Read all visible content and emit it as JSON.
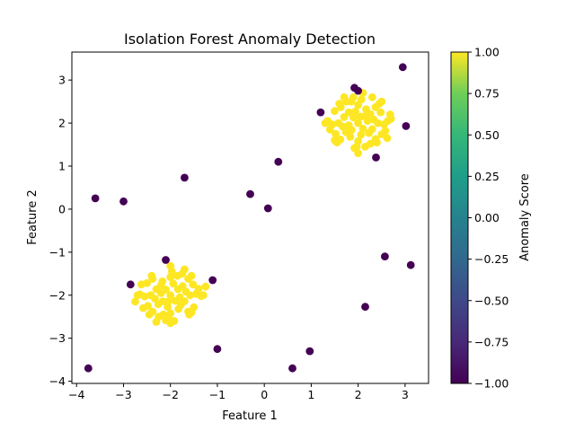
{
  "chart_data": {
    "type": "scatter",
    "title": "Isolation Forest Anomaly Detection",
    "xlabel": "Feature 1",
    "ylabel": "Feature 2",
    "xlim": [
      -4.1,
      3.5
    ],
    "ylim": [
      -4.05,
      3.65
    ],
    "xticks": [
      -4,
      -3,
      -2,
      -1,
      0,
      1,
      2,
      3
    ],
    "yticks": [
      -4,
      -3,
      -2,
      -1,
      0,
      1,
      2,
      3
    ],
    "grid": false,
    "colorbar": {
      "label": "Anomaly Score",
      "colormap": "viridis",
      "range": [
        -1.0,
        1.0
      ],
      "ticks": [
        "-1.00",
        "-0.75",
        "-0.50",
        "-0.25",
        "0.00",
        "0.25",
        "0.50",
        "0.75",
        "1.00"
      ],
      "ticks_values": [
        -1.0,
        -0.75,
        -0.5,
        -0.25,
        0.0,
        0.25,
        0.5,
        0.75,
        1.0
      ]
    },
    "colors": {
      "inlier": "#fde725",
      "outlier": "#440154"
    },
    "series": [
      {
        "score": 1,
        "points": [
          [
            2.0,
            2.0
          ],
          [
            1.62,
            1.62
          ],
          [
            1.63,
            2.37
          ],
          [
            2.37,
            1.63
          ],
          [
            2.37,
            2.37
          ],
          [
            1.58,
            2.0
          ],
          [
            2.42,
            2.0
          ],
          [
            2.0,
            1.58
          ],
          [
            2.0,
            2.42
          ],
          [
            1.45,
            1.97
          ],
          [
            2.55,
            1.97
          ],
          [
            1.97,
            1.45
          ],
          [
            2.07,
            2.55
          ],
          [
            1.35,
            2.05
          ],
          [
            2.63,
            2.05
          ],
          [
            1.74,
            1.79
          ],
          [
            2.26,
            2.21
          ],
          [
            1.8,
            2.25
          ],
          [
            2.23,
            1.77
          ],
          [
            2.1,
            1.87
          ],
          [
            1.9,
            2.13
          ],
          [
            2.14,
            2.16
          ],
          [
            1.86,
            1.84
          ],
          [
            1.7,
            2.14
          ],
          [
            2.3,
            1.86
          ],
          [
            1.67,
            1.92
          ],
          [
            2.33,
            2.08
          ],
          [
            2.06,
            1.73
          ],
          [
            1.94,
            2.27
          ],
          [
            1.52,
            1.75
          ],
          [
            2.48,
            2.25
          ],
          [
            1.75,
            2.5
          ],
          [
            2.26,
            1.52
          ],
          [
            1.5,
            2.28
          ],
          [
            2.5,
            1.74
          ],
          [
            1.3,
            2.0
          ],
          [
            2.7,
            2.1
          ],
          [
            2.0,
            1.3
          ],
          [
            2.1,
            2.7
          ],
          [
            1.9,
            2.6
          ],
          [
            1.55,
            1.55
          ],
          [
            2.45,
            2.45
          ],
          [
            1.6,
            2.45
          ],
          [
            2.4,
            1.55
          ],
          [
            1.83,
            1.68
          ],
          [
            2.17,
            2.32
          ],
          [
            1.8,
            1.95
          ],
          [
            2.2,
            2.05
          ],
          [
            2.5,
            2.5
          ],
          [
            2.68,
            2.2
          ],
          [
            1.4,
            1.85
          ],
          [
            2.58,
            1.82
          ],
          [
            1.92,
            1.42
          ],
          [
            2.3,
            2.6
          ],
          [
            1.7,
            2.6
          ],
          [
            2.62,
            1.65
          ],
          [
            1.5,
            1.6
          ],
          [
            2.15,
            1.45
          ],
          [
            1.85,
            2.5
          ],
          [
            2.05,
            2.15
          ],
          [
            -2.0,
            -2.0
          ],
          [
            -2.38,
            -1.62
          ],
          [
            -1.62,
            -2.38
          ],
          [
            -2.38,
            -2.38
          ],
          [
            -1.62,
            -1.62
          ],
          [
            -2.42,
            -2.0
          ],
          [
            -1.58,
            -2.0
          ],
          [
            -2.0,
            -2.42
          ],
          [
            -2.0,
            -1.58
          ],
          [
            -2.55,
            -2.03
          ],
          [
            -1.45,
            -1.97
          ],
          [
            -2.03,
            -2.55
          ],
          [
            -1.97,
            -1.45
          ],
          [
            -2.65,
            -1.98
          ],
          [
            -1.35,
            -2.02
          ],
          [
            -2.26,
            -2.21
          ],
          [
            -1.74,
            -1.79
          ],
          [
            -2.2,
            -1.77
          ],
          [
            -1.78,
            -2.23
          ],
          [
            -1.9,
            -2.13
          ],
          [
            -2.1,
            -1.87
          ],
          [
            -2.16,
            -2.14
          ],
          [
            -1.84,
            -1.86
          ],
          [
            -2.3,
            -1.86
          ],
          [
            -1.7,
            -2.14
          ],
          [
            -2.33,
            -2.08
          ],
          [
            -1.67,
            -1.92
          ],
          [
            -1.94,
            -1.73
          ],
          [
            -2.06,
            -2.27
          ],
          [
            -2.48,
            -2.25
          ],
          [
            -1.52,
            -1.75
          ],
          [
            -2.25,
            -2.5
          ],
          [
            -1.75,
            -1.5
          ],
          [
            -2.5,
            -1.72
          ],
          [
            -1.5,
            -2.28
          ],
          [
            -2.7,
            -2.0
          ],
          [
            -1.3,
            -2.0
          ],
          [
            -2.0,
            -2.65
          ],
          [
            -2.0,
            -1.32
          ],
          [
            -2.1,
            -2.58
          ],
          [
            -2.45,
            -2.45
          ],
          [
            -1.55,
            -1.55
          ],
          [
            -2.4,
            -1.55
          ],
          [
            -1.6,
            -2.45
          ],
          [
            -2.17,
            -1.68
          ],
          [
            -1.83,
            -2.32
          ],
          [
            -2.2,
            -1.95
          ],
          [
            -1.8,
            -2.05
          ],
          [
            -2.75,
            -2.15
          ],
          [
            -1.4,
            -1.85
          ],
          [
            -2.58,
            -2.3
          ],
          [
            -1.92,
            -2.6
          ],
          [
            -2.3,
            -2.62
          ],
          [
            -1.7,
            -1.4
          ],
          [
            -2.62,
            -1.75
          ],
          [
            -1.55,
            -2.4
          ],
          [
            -2.15,
            -2.45
          ],
          [
            -1.85,
            -1.55
          ],
          [
            -2.05,
            -2.15
          ],
          [
            -1.25,
            -1.8
          ]
        ]
      },
      {
        "score": -1,
        "points": [
          [
            2.95,
            3.3
          ],
          [
            1.92,
            2.82
          ],
          [
            2.0,
            2.75
          ],
          [
            1.2,
            2.25
          ],
          [
            3.02,
            1.93
          ],
          [
            2.38,
            1.2
          ],
          [
            0.3,
            1.1
          ],
          [
            -1.7,
            0.73
          ],
          [
            -3.6,
            0.25
          ],
          [
            -3.0,
            0.18
          ],
          [
            -0.3,
            0.35
          ],
          [
            0.08,
            0.02
          ],
          [
            -2.1,
            -1.18
          ],
          [
            -1.1,
            -1.65
          ],
          [
            -2.85,
            -1.75
          ],
          [
            2.57,
            -1.1
          ],
          [
            3.12,
            -1.3
          ],
          [
            2.15,
            -2.27
          ],
          [
            -1.0,
            -3.25
          ],
          [
            0.97,
            -3.3
          ],
          [
            -3.75,
            -3.7
          ],
          [
            0.6,
            -3.7
          ]
        ]
      }
    ]
  }
}
